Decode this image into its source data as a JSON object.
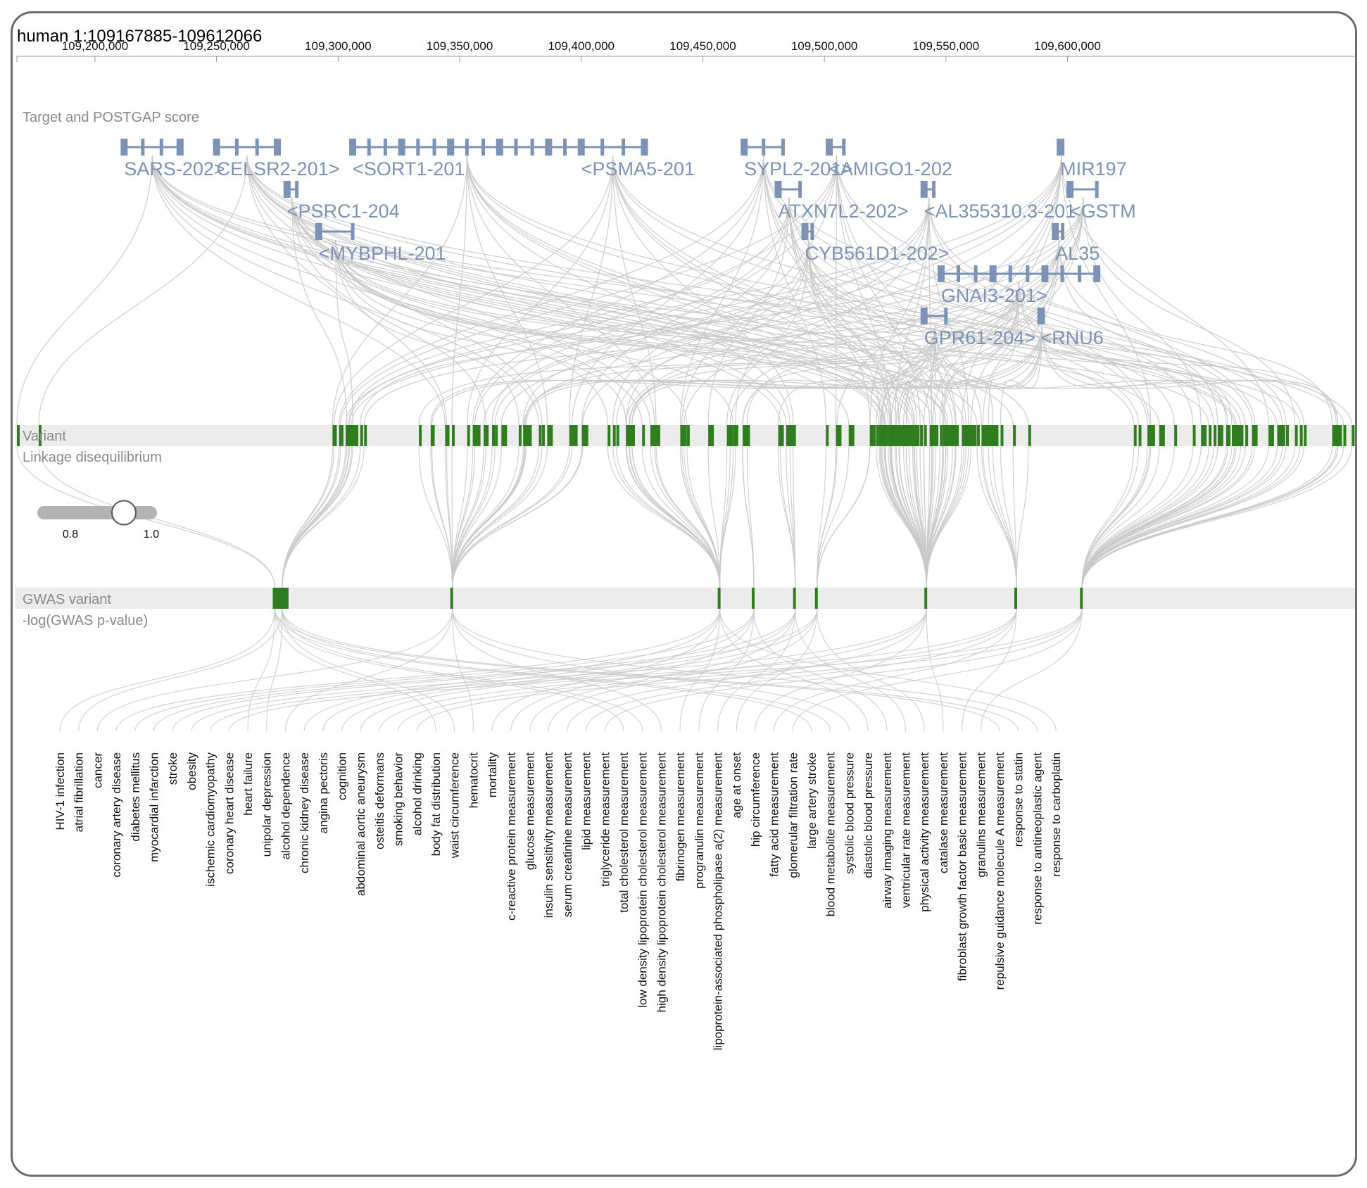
{
  "locus": {
    "label": "human 1:109167885-109612066",
    "start": 109167885,
    "end": 109612066
  },
  "axis_ticks": [
    {
      "value": 109200000,
      "label": "109,200,000"
    },
    {
      "value": 109250000,
      "label": "109,250,000"
    },
    {
      "value": 109300000,
      "label": "109,300,000"
    },
    {
      "value": 109350000,
      "label": "109,350,000"
    },
    {
      "value": 109400000,
      "label": "109,400,000"
    },
    {
      "value": 109450000,
      "label": "109,450,000"
    },
    {
      "value": 109500000,
      "label": "109,500,000"
    },
    {
      "value": 109550000,
      "label": "109,550,000"
    },
    {
      "value": 109600000,
      "label": "109,600,000"
    }
  ],
  "tracks": {
    "genes_title": "Target and POSTGAP score",
    "variant": "Variant",
    "ld": "Linkage disequilibrium",
    "gwas": "GWAS variant",
    "pvalue": "-log(GWAS p-value)"
  },
  "ld_slider": {
    "min_label": "0.8",
    "max_label": "1.0",
    "value": 0.9
  },
  "genes": [
    {
      "name": "SARS-202>",
      "start": 109212000,
      "end": 109235000,
      "row": 0
    },
    {
      "name": "CELSR2-201>",
      "start": 109250000,
      "end": 109275000,
      "row": 0
    },
    {
      "name": "<SORT1-201",
      "start": 109306000,
      "end": 109400000,
      "row": 0
    },
    {
      "name": "<PSMA5-201",
      "start": 109400000,
      "end": 109426000,
      "row": 0
    },
    {
      "name": "SYPL2-201>",
      "start": 109467000,
      "end": 109483000,
      "row": 0
    },
    {
      "name": "<AMIGO1-202",
      "start": 109502000,
      "end": 109508000,
      "row": 0
    },
    {
      "name": "MIR197",
      "start": 109597000,
      "end": 109598000,
      "row": 0
    },
    {
      "name": "<PSRC1-204",
      "start": 109279000,
      "end": 109283000,
      "row": 1
    },
    {
      "name": "ATXN7L2-202>",
      "start": 109481000,
      "end": 109490000,
      "row": 1
    },
    {
      "name": "<AL355310.3-201",
      "start": 109541000,
      "end": 109545000,
      "row": 1
    },
    {
      "name": "<GSTM",
      "start": 109601000,
      "end": 109612066,
      "row": 1
    },
    {
      "name": "<MYBPHL-201",
      "start": 109292000,
      "end": 109306000,
      "row": 2
    },
    {
      "name": "CYB561D1-202>",
      "start": 109492000,
      "end": 109495000,
      "row": 2
    },
    {
      "name": "AL35",
      "start": 109595000,
      "end": 109598000,
      "row": 2
    },
    {
      "name": "GNAI3-201>",
      "start": 109548000,
      "end": 109612066,
      "row": 3
    },
    {
      "name": "GPR61-204>",
      "start": 109541000,
      "end": 109550000,
      "row": 4
    },
    {
      "name": "<RNU6",
      "start": 109589000,
      "end": 109590000,
      "row": 4
    }
  ],
  "traits": [
    "HIV-1 infection",
    "atrial fibrillation",
    "cancer",
    "coronary artery disease",
    "diabetes mellitus",
    "myocardial infarction",
    "stroke",
    "obesity",
    "ischemic cardiomyopathy",
    "coronary heart disease",
    "heart failure",
    "unipolar depression",
    "alcohol dependence",
    "chronic kidney disease",
    "angina pectoris",
    "cognition",
    "abdominal aortic aneurysm",
    "osteitis deformans",
    "smoking behavior",
    "alcohol drinking",
    "body fat distribution",
    "waist circumference",
    "hematocrit",
    "mortality",
    "c-reactive protein measurement",
    "glucose measurement",
    "insulin sensitivity measurement",
    "serum creatinine measurement",
    "lipid measurement",
    "triglyceride measurement",
    "total cholesterol measurement",
    "low density lipoprotein cholesterol measurement",
    "high density lipoprotein cholesterol measurement",
    "fibrinogen measurement",
    "progranulin measurement",
    "lipoprotein-associated phospholipase a(2) measurement",
    "age at onset",
    "hip circumference",
    "fatty acid measurement",
    "glomerular filtration rate",
    "large artery stroke",
    "blood metabolite measurement",
    "systolic blood pressure",
    "diastolic blood pressure",
    "airway imaging measurement",
    "ventricular rate measurement",
    "physical activity measurement",
    "catalase measurement",
    "fibroblast growth factor basic measurement",
    "granulins measurement",
    "repulsive guidance molecule A measurement",
    "response to statin",
    "response to antineoplastic agent",
    "response to carboplatin"
  ],
  "gwas_variants": [
    109274000,
    109277000,
    109347000,
    109457000,
    109471000,
    109488000,
    109497000,
    109542000,
    109579000,
    109606000
  ],
  "colors": {
    "gene": "#7d93b5",
    "variant": "#2f7d1e",
    "link": "#c9c9c9",
    "frame": "#6b6b70",
    "band": "#ececec"
  }
}
